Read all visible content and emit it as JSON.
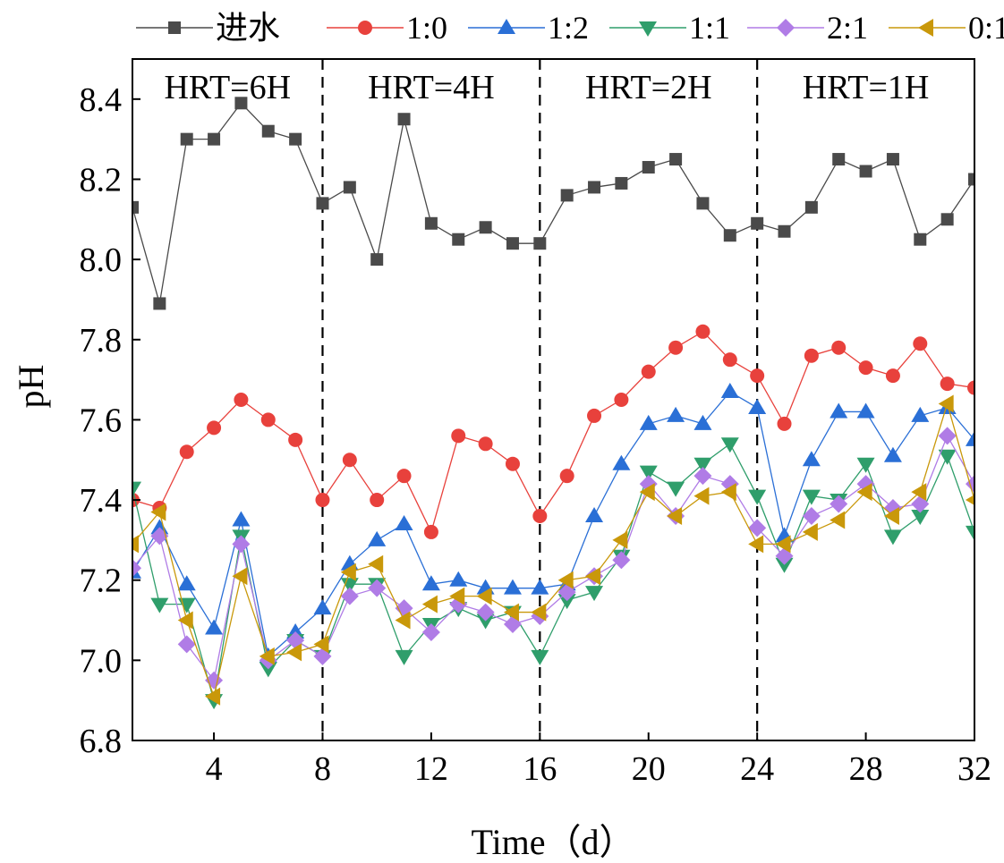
{
  "chart_data": {
    "type": "line",
    "xlabel": "Time（d）",
    "ylabel": "pH",
    "xlim": [
      1,
      32
    ],
    "ylim": [
      6.8,
      8.5
    ],
    "xticks": [
      4,
      8,
      12,
      16,
      20,
      24,
      28,
      32
    ],
    "yticks": [
      6.8,
      7.0,
      7.2,
      7.4,
      7.6,
      7.8,
      8.0,
      8.2,
      8.4
    ],
    "ytick_labels": [
      "6.8",
      "7.0",
      "7.2",
      "7.4",
      "7.6",
      "7.8",
      "8.0",
      "8.2",
      "8.4"
    ],
    "legend_position": "top",
    "dividers": [
      8,
      16,
      24
    ],
    "period_labels": [
      "HRT=6H",
      "HRT=4H",
      "HRT=2H",
      "HRT=1H"
    ],
    "x": [
      1,
      2,
      3,
      4,
      5,
      6,
      7,
      8,
      9,
      10,
      11,
      12,
      13,
      14,
      15,
      16,
      17,
      18,
      19,
      20,
      21,
      22,
      23,
      24,
      25,
      26,
      27,
      28,
      29,
      30,
      31,
      32
    ],
    "series": [
      {
        "name": "进水",
        "color": "#4a4a4a",
        "marker": "square",
        "values": [
          8.13,
          7.89,
          8.3,
          8.3,
          8.39,
          8.32,
          8.3,
          8.14,
          8.18,
          8.0,
          8.35,
          8.09,
          8.05,
          8.08,
          8.04,
          8.04,
          8.16,
          8.18,
          8.19,
          8.23,
          8.25,
          8.14,
          8.06,
          8.09,
          8.07,
          8.13,
          8.25,
          8.22,
          8.25,
          8.05,
          8.1,
          8.2
        ]
      },
      {
        "name": "1:0",
        "color": "#e8413c",
        "marker": "circle",
        "values": [
          7.4,
          7.38,
          7.52,
          7.58,
          7.65,
          7.6,
          7.55,
          7.4,
          7.5,
          7.4,
          7.46,
          7.32,
          7.56,
          7.54,
          7.49,
          7.36,
          7.46,
          7.61,
          7.65,
          7.72,
          7.78,
          7.82,
          7.75,
          7.71,
          7.59,
          7.76,
          7.78,
          7.73,
          7.71,
          7.79,
          7.69,
          7.68
        ]
      },
      {
        "name": "1:2",
        "color": "#2a6fd6",
        "marker": "triangle-up",
        "values": [
          7.22,
          7.33,
          7.19,
          7.08,
          7.35,
          7.01,
          7.07,
          7.13,
          7.24,
          7.3,
          7.34,
          7.19,
          7.2,
          7.18,
          7.18,
          7.18,
          7.19,
          7.36,
          7.49,
          7.59,
          7.61,
          7.59,
          7.67,
          7.63,
          7.31,
          7.5,
          7.62,
          7.62,
          7.51,
          7.61,
          7.63,
          7.55
        ]
      },
      {
        "name": "1:1",
        "color": "#2f9e6b",
        "marker": "triangle-down",
        "values": [
          7.43,
          7.14,
          7.14,
          6.9,
          7.31,
          6.98,
          7.05,
          7.01,
          7.19,
          7.19,
          7.01,
          7.09,
          7.13,
          7.1,
          7.12,
          7.01,
          7.15,
          7.17,
          7.26,
          7.47,
          7.43,
          7.49,
          7.54,
          7.41,
          7.24,
          7.41,
          7.4,
          7.49,
          7.31,
          7.36,
          7.51,
          7.32
        ]
      },
      {
        "name": "2:1",
        "color": "#b07ce6",
        "marker": "diamond",
        "values": [
          7.23,
          7.31,
          7.04,
          6.95,
          7.29,
          7.0,
          7.05,
          7.01,
          7.16,
          7.18,
          7.13,
          7.07,
          7.14,
          7.12,
          7.09,
          7.11,
          7.17,
          7.21,
          7.25,
          7.44,
          7.36,
          7.46,
          7.44,
          7.33,
          7.26,
          7.36,
          7.39,
          7.44,
          7.38,
          7.39,
          7.56,
          7.44
        ]
      },
      {
        "name": "0:1",
        "color": "#c9980a",
        "marker": "triangle-left",
        "values": [
          7.29,
          7.37,
          7.1,
          6.91,
          7.21,
          7.01,
          7.02,
          7.04,
          7.22,
          7.24,
          7.1,
          7.14,
          7.16,
          7.16,
          7.12,
          7.12,
          7.2,
          7.21,
          7.3,
          7.42,
          7.36,
          7.41,
          7.42,
          7.29,
          7.29,
          7.32,
          7.35,
          7.42,
          7.36,
          7.42,
          7.64,
          7.4
        ]
      }
    ]
  }
}
